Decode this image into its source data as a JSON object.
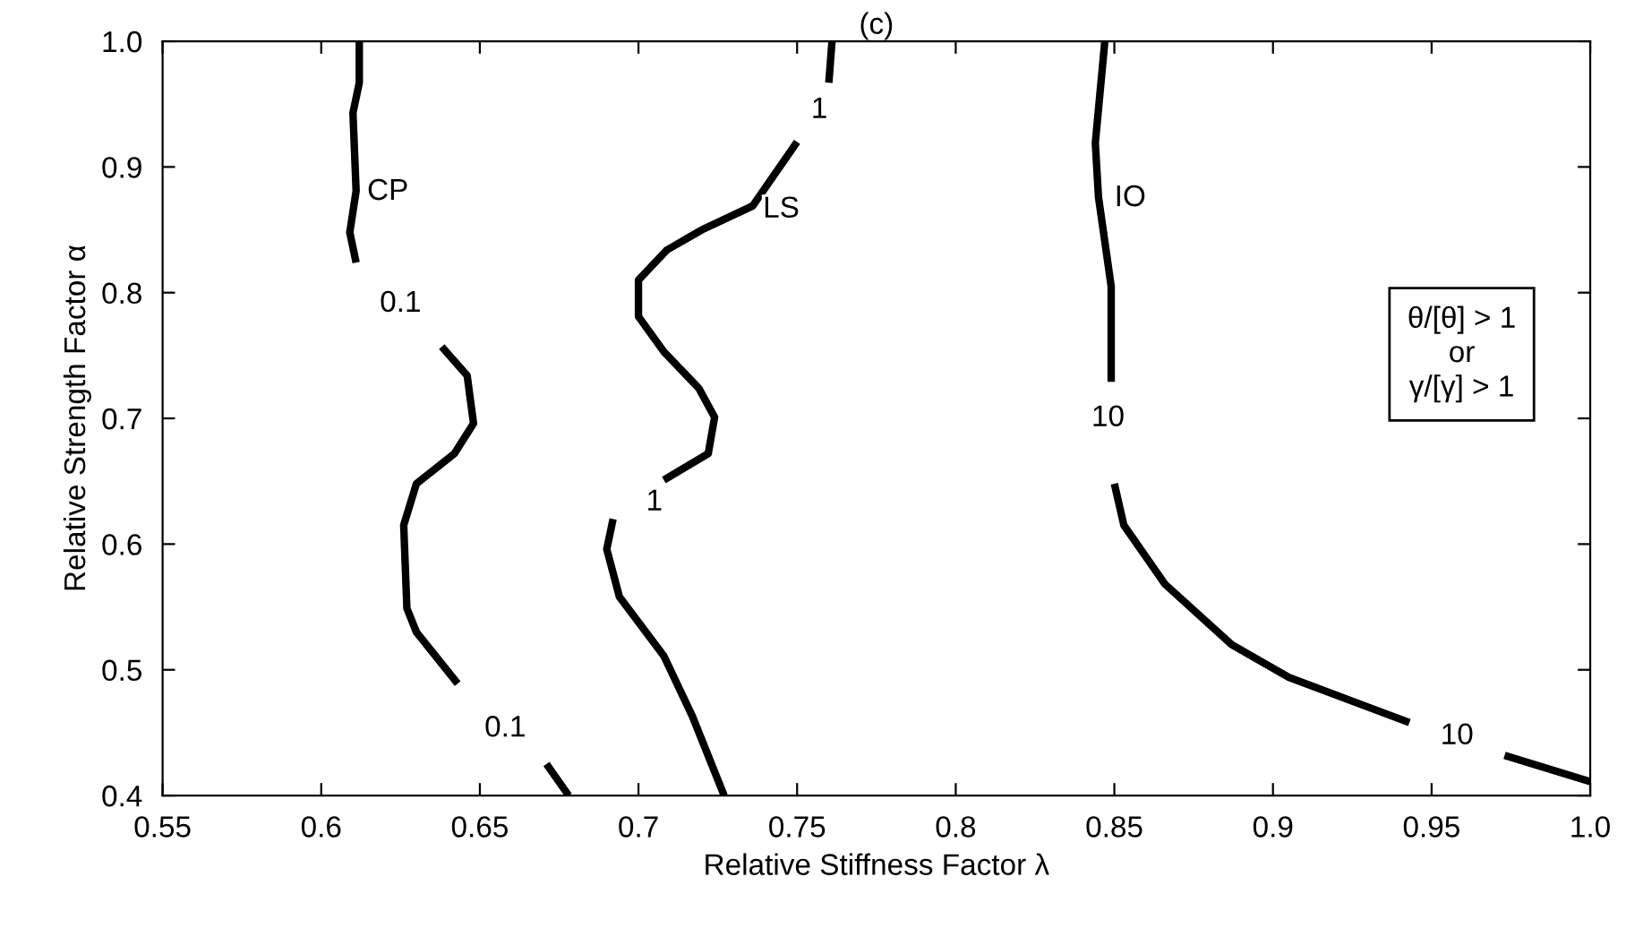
{
  "chart_data": {
    "type": "line",
    "title": "(c)",
    "xlabel": "Relative Stiffness Factor λ",
    "ylabel": "Relative Strength Factor α",
    "xlim": [
      0.55,
      1.0
    ],
    "ylim": [
      0.4,
      1.0
    ],
    "xticks": [
      0.55,
      0.6,
      0.65,
      0.7,
      0.75,
      0.8,
      0.85,
      0.9,
      0.95,
      {
        "value": 1.0,
        "label": "1.0"
      }
    ],
    "yticks": [
      0.4,
      0.5,
      0.6,
      0.7,
      0.8,
      0.9,
      {
        "value": 1.0,
        "label": "1.0"
      }
    ],
    "grid": false,
    "legend": false,
    "marker": "none",
    "line_style": "solid",
    "series": [
      {
        "color": "#000000",
        "x": [
          0.612,
          0.612,
          0.61,
          0.611,
          0.609,
          0.611,
          null,
          0.638,
          0.646,
          0.648,
          0.642,
          0.63,
          0.626,
          0.627,
          0.63,
          0.643,
          null,
          0.671,
          0.678
        ],
        "values": [
          1.0,
          0.967,
          0.943,
          0.881,
          0.848,
          0.824,
          null,
          0.757,
          0.734,
          0.696,
          0.672,
          0.648,
          0.615,
          0.549,
          0.53,
          0.489,
          null,
          0.425,
          0.4
        ]
      },
      {
        "color": "#000000",
        "x": [
          0.761,
          0.76,
          null,
          0.75,
          0.736,
          0.72,
          0.709,
          0.7,
          0.7,
          0.708,
          0.719,
          0.724,
          0.722,
          0.708,
          null,
          0.692,
          0.69,
          0.694,
          0.708,
          0.717,
          0.727
        ],
        "values": [
          1.0,
          0.967,
          null,
          0.92,
          0.869,
          0.85,
          0.834,
          0.81,
          0.781,
          0.753,
          0.724,
          0.701,
          0.672,
          0.651,
          null,
          0.62,
          0.596,
          0.558,
          0.511,
          0.463,
          0.4
        ]
      },
      {
        "color": "#000000",
        "x": [
          0.847,
          0.844,
          0.845,
          0.849,
          0.849,
          null,
          0.85,
          0.853,
          0.866,
          0.887,
          0.905,
          0.943,
          null,
          0.973,
          1.0
        ],
        "values": [
          1.0,
          0.919,
          0.876,
          0.805,
          0.729,
          null,
          0.648,
          0.615,
          0.568,
          0.52,
          0.494,
          0.458,
          null,
          0.432,
          0.411
        ]
      }
    ],
    "annotations": [
      {
        "text": "CP",
        "x": 0.621,
        "y": 0.88
      },
      {
        "text": "LS",
        "x": 0.745,
        "y": 0.866
      },
      {
        "text": "IO",
        "x": 0.855,
        "y": 0.875
      },
      {
        "text": "0.1",
        "x": 0.625,
        "y": 0.791
      },
      {
        "text": "0.1",
        "x": 0.658,
        "y": 0.453
      },
      {
        "text": "1",
        "x": 0.757,
        "y": 0.945
      },
      {
        "text": "1",
        "x": 0.705,
        "y": 0.633
      },
      {
        "text": "10",
        "x": 0.848,
        "y": 0.7
      },
      {
        "text": "10",
        "x": 0.958,
        "y": 0.447
      },
      "θ/[θ] > 1\nor\nγ/[γ] > 1"
    ]
  }
}
